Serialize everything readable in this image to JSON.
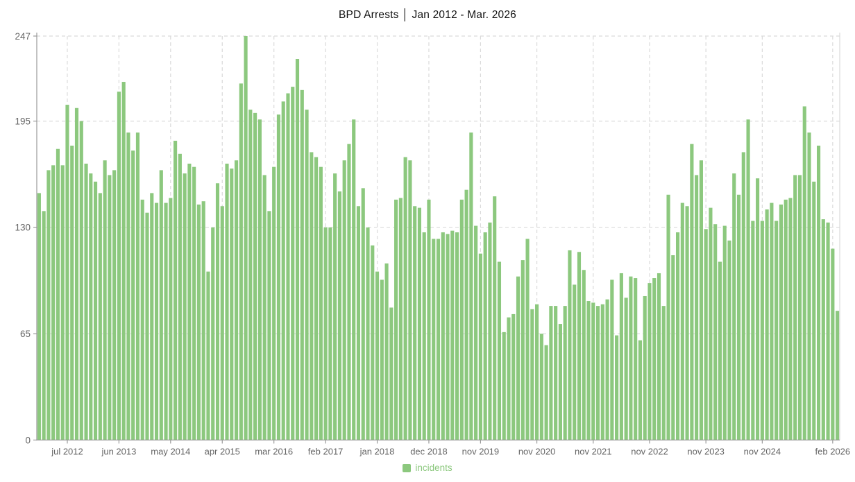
{
  "title": "BPD Arrests │ Jan 2012 - Mar. 2026",
  "legend": {
    "label": "incidents"
  },
  "colors": {
    "bar": "#8cc87e",
    "grid": "#dadada",
    "axis": "#999999",
    "tick_text": "#666666",
    "title_text": "#111111"
  },
  "chart_data": {
    "type": "bar",
    "title": "BPD Arrests │ Jan 2012 - Mar. 2026",
    "series_name": "incidents",
    "legend_position": "bottom",
    "grid": "dashed",
    "ylim": [
      0,
      247
    ],
    "y_ticks": [
      0,
      65,
      130,
      195,
      247
    ],
    "x_tick_labels": [
      {
        "label": "jul 2012",
        "month": "2012-07"
      },
      {
        "label": "jun 2013",
        "month": "2013-06"
      },
      {
        "label": "may 2014",
        "month": "2014-05"
      },
      {
        "label": "apr 2015",
        "month": "2015-04"
      },
      {
        "label": "mar 2016",
        "month": "2016-03"
      },
      {
        "label": "feb 2017",
        "month": "2017-02"
      },
      {
        "label": "jan 2018",
        "month": "2018-01"
      },
      {
        "label": "dec 2018",
        "month": "2018-12"
      },
      {
        "label": "nov 2019",
        "month": "2019-11"
      },
      {
        "label": "nov 2020",
        "month": "2020-11"
      },
      {
        "label": "nov 2021",
        "month": "2021-11"
      },
      {
        "label": "nov 2022",
        "month": "2022-11"
      },
      {
        "label": "nov 2023",
        "month": "2023-11"
      },
      {
        "label": "nov 2024",
        "month": "2024-11"
      },
      {
        "label": "feb 2026",
        "month": "2026-02"
      }
    ],
    "x": [
      "2012-01",
      "2012-02",
      "2012-03",
      "2012-04",
      "2012-05",
      "2012-06",
      "2012-07",
      "2012-08",
      "2012-09",
      "2012-10",
      "2012-11",
      "2012-12",
      "2013-01",
      "2013-02",
      "2013-03",
      "2013-04",
      "2013-05",
      "2013-06",
      "2013-07",
      "2013-08",
      "2013-09",
      "2013-10",
      "2013-11",
      "2013-12",
      "2014-01",
      "2014-02",
      "2014-03",
      "2014-04",
      "2014-05",
      "2014-06",
      "2014-07",
      "2014-08",
      "2014-09",
      "2014-10",
      "2014-11",
      "2014-12",
      "2015-01",
      "2015-02",
      "2015-03",
      "2015-04",
      "2015-05",
      "2015-06",
      "2015-07",
      "2015-08",
      "2015-09",
      "2015-10",
      "2015-11",
      "2015-12",
      "2016-01",
      "2016-02",
      "2016-03",
      "2016-04",
      "2016-05",
      "2016-06",
      "2016-07",
      "2016-08",
      "2016-09",
      "2016-10",
      "2016-11",
      "2016-12",
      "2017-01",
      "2017-02",
      "2017-03",
      "2017-04",
      "2017-05",
      "2017-06",
      "2017-07",
      "2017-08",
      "2017-09",
      "2017-10",
      "2017-11",
      "2017-12",
      "2018-01",
      "2018-02",
      "2018-03",
      "2018-04",
      "2018-05",
      "2018-06",
      "2018-07",
      "2018-08",
      "2018-09",
      "2018-10",
      "2018-11",
      "2018-12",
      "2019-01",
      "2019-02",
      "2019-03",
      "2019-04",
      "2019-05",
      "2019-06",
      "2019-07",
      "2019-08",
      "2019-09",
      "2019-10",
      "2019-11",
      "2019-12",
      "2020-01",
      "2020-02",
      "2020-03",
      "2020-04",
      "2020-05",
      "2020-06",
      "2020-07",
      "2020-08",
      "2020-09",
      "2020-10",
      "2020-11",
      "2020-12",
      "2021-01",
      "2021-02",
      "2021-03",
      "2021-04",
      "2021-05",
      "2021-06",
      "2021-07",
      "2021-08",
      "2021-09",
      "2021-10",
      "2021-11",
      "2021-12",
      "2022-01",
      "2022-02",
      "2022-03",
      "2022-04",
      "2022-05",
      "2022-06",
      "2022-07",
      "2022-08",
      "2022-09",
      "2022-10",
      "2022-11",
      "2022-12",
      "2023-01",
      "2023-02",
      "2023-03",
      "2023-04",
      "2023-05",
      "2023-06",
      "2023-07",
      "2023-08",
      "2023-09",
      "2023-10",
      "2023-11",
      "2023-12",
      "2024-01",
      "2024-02",
      "2024-03",
      "2024-04",
      "2024-05",
      "2024-06",
      "2024-07",
      "2024-08",
      "2024-09",
      "2024-10",
      "2024-11",
      "2024-12",
      "2025-01",
      "2025-02",
      "2025-03",
      "2025-04",
      "2025-05",
      "2025-06",
      "2025-07",
      "2025-08",
      "2025-09",
      "2025-10",
      "2025-11",
      "2025-12",
      "2026-01",
      "2026-02",
      "2026-03"
    ],
    "values": [
      151,
      140,
      165,
      168,
      178,
      168,
      205,
      180,
      203,
      195,
      169,
      163,
      158,
      151,
      171,
      162,
      165,
      213,
      219,
      188,
      177,
      188,
      147,
      139,
      151,
      145,
      165,
      145,
      148,
      183,
      175,
      163,
      169,
      167,
      144,
      146,
      103,
      130,
      157,
      143,
      169,
      166,
      171,
      218,
      247,
      202,
      200,
      196,
      162,
      140,
      167,
      199,
      207,
      212,
      216,
      233,
      214,
      202,
      176,
      173,
      167,
      130,
      130,
      163,
      152,
      171,
      181,
      196,
      143,
      154,
      130,
      119,
      103,
      98,
      108,
      81,
      147,
      148,
      173,
      171,
      143,
      142,
      127,
      147,
      123,
      123,
      127,
      126,
      128,
      127,
      147,
      153,
      188,
      131,
      114,
      127,
      133,
      149,
      109,
      66,
      75,
      77,
      100,
      110,
      123,
      80,
      83,
      65,
      58,
      82,
      82,
      71,
      82,
      116,
      95,
      115,
      104,
      85,
      84,
      82,
      83,
      86,
      98,
      64,
      102,
      87,
      100,
      99,
      61,
      88,
      96,
      99,
      102,
      82,
      150,
      113,
      127,
      145,
      143,
      181,
      162,
      171,
      129,
      142,
      132,
      109,
      131,
      122,
      163,
      150,
      176,
      196,
      134,
      160,
      134,
      141,
      145,
      134,
      144,
      147,
      148,
      162,
      162,
      204,
      188,
      158,
      180,
      135,
      133,
      117,
      79
    ]
  }
}
